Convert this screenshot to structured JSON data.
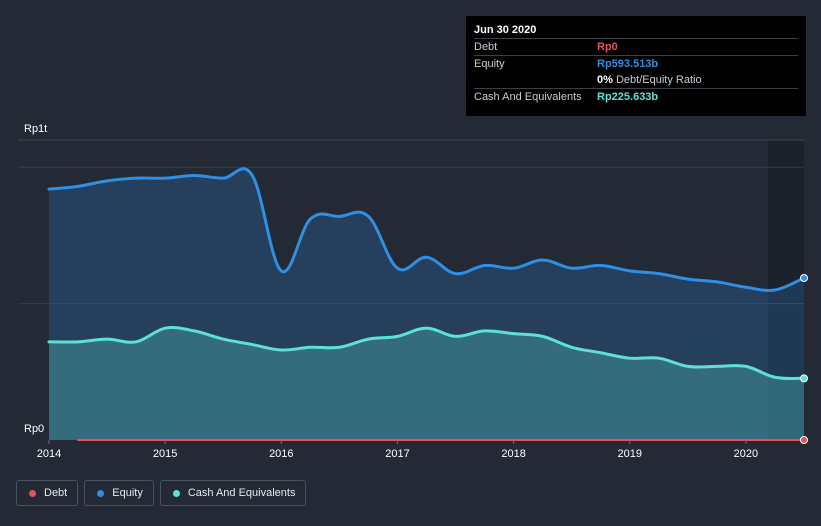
{
  "chart_data": {
    "type": "area",
    "title": "",
    "x": [
      2014.0,
      2014.25,
      2014.5,
      2014.75,
      2015.0,
      2015.25,
      2015.5,
      2015.75,
      2016.0,
      2016.25,
      2016.5,
      2016.75,
      2017.0,
      2017.25,
      2017.5,
      2017.75,
      2018.0,
      2018.25,
      2018.5,
      2018.75,
      2019.0,
      2019.25,
      2019.5,
      2019.75,
      2020.0,
      2020.25,
      2020.5
    ],
    "series": [
      {
        "name": "Debt",
        "color": "#e8505b",
        "x": [
          2014.25,
          2020.5
        ],
        "values": [
          0,
          0
        ]
      },
      {
        "name": "Equity",
        "color": "#2f8fe3",
        "values": [
          0.92,
          0.93,
          0.95,
          0.96,
          0.96,
          0.97,
          0.96,
          0.97,
          0.62,
          0.81,
          0.82,
          0.82,
          0.63,
          0.67,
          0.61,
          0.64,
          0.63,
          0.66,
          0.63,
          0.64,
          0.62,
          0.61,
          0.59,
          0.58,
          0.56,
          0.55,
          0.594
        ]
      },
      {
        "name": "Cash And Equivalents",
        "color": "#5ce1d6",
        "values": [
          0.36,
          0.36,
          0.37,
          0.36,
          0.41,
          0.4,
          0.37,
          0.35,
          0.33,
          0.34,
          0.34,
          0.37,
          0.38,
          0.41,
          0.38,
          0.4,
          0.39,
          0.38,
          0.34,
          0.32,
          0.3,
          0.3,
          0.27,
          0.27,
          0.27,
          0.23,
          0.226
        ]
      }
    ],
    "ylim": [
      0,
      1.1
    ],
    "xlim": [
      2014,
      2020.5
    ],
    "y_tick_labels": [
      "Rp0",
      "Rp1t"
    ],
    "x_tick_labels": [
      "2014",
      "2015",
      "2016",
      "2017",
      "2018",
      "2019",
      "2020"
    ],
    "legend_position": "bottom-left",
    "grid": true
  },
  "tooltip": {
    "title": "Jun 30 2020",
    "rows": [
      {
        "label": "Debt",
        "value": "Rp0",
        "color": "#e8505b"
      },
      {
        "label": "Equity",
        "value": "Rp593.513b",
        "color": "#2f8fe3"
      },
      {
        "label": "",
        "value_bold": "0%",
        "value_rest": " Debt/Equity Ratio",
        "color": "#ffffff"
      },
      {
        "label": "Cash And Equivalents",
        "value": "Rp225.633b",
        "color": "#5ce1d6"
      }
    ]
  },
  "legend": [
    {
      "label": "Debt",
      "color": "#e8505b"
    },
    {
      "label": "Equity",
      "color": "#2f8fe3"
    },
    {
      "label": "Cash And Equivalents",
      "color": "#5ce1d6"
    }
  ]
}
